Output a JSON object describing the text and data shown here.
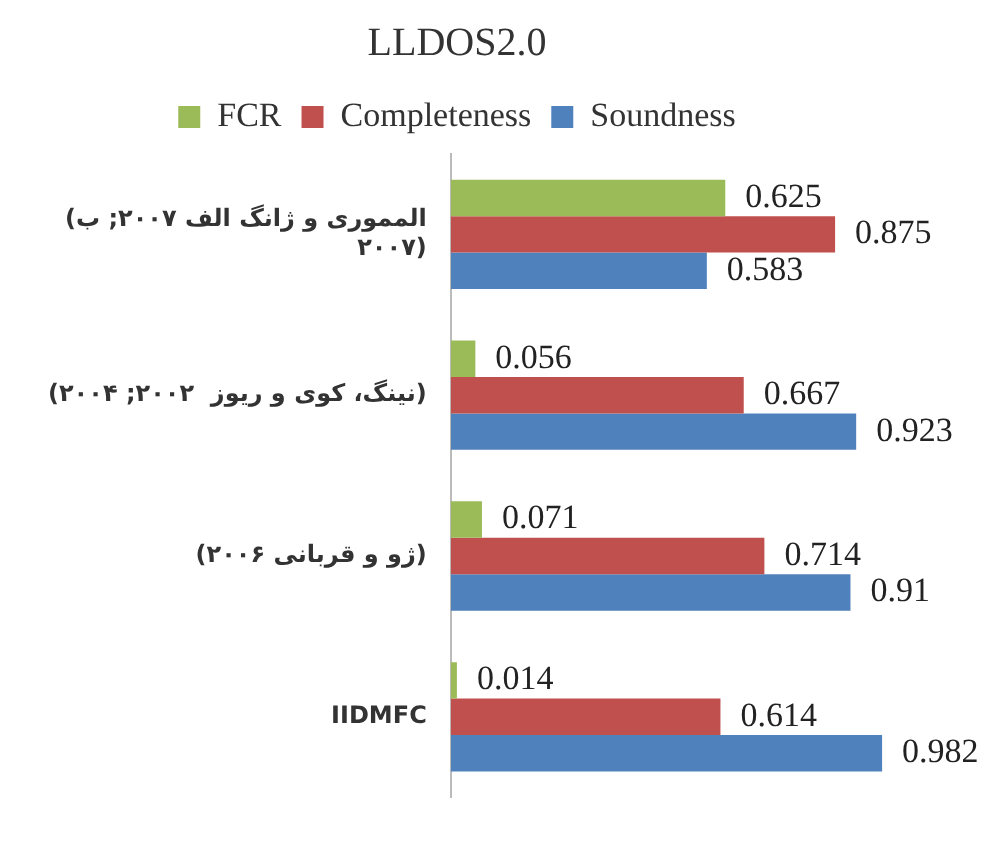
{
  "chart_data": {
    "type": "bar",
    "orientation": "horizontal",
    "title": "LLDOS2.0",
    "categories": [
      "(المموری و ژانگ الف ۲۰۰۷; ب ۲۰۰۷)",
      "(نینگ، کوی و ریوز  ۲۰۰۲; ۲۰۰۴)",
      "(ژو و قربانی ۲۰۰۶)",
      "IIDMFC"
    ],
    "series": [
      {
        "name": "FCR",
        "color": "#9bbb59",
        "values": [
          0.625,
          0.056,
          0.071,
          0.014
        ]
      },
      {
        "name": "Completeness",
        "color": "#c0504d",
        "values": [
          0.875,
          0.667,
          0.714,
          0.614
        ]
      },
      {
        "name": "Soundness",
        "color": "#4f81bd",
        "values": [
          0.583,
          0.923,
          0.91,
          0.982
        ]
      }
    ],
    "data_labels": true,
    "legend": "top",
    "tick_labels": "y",
    "grid": false
  }
}
